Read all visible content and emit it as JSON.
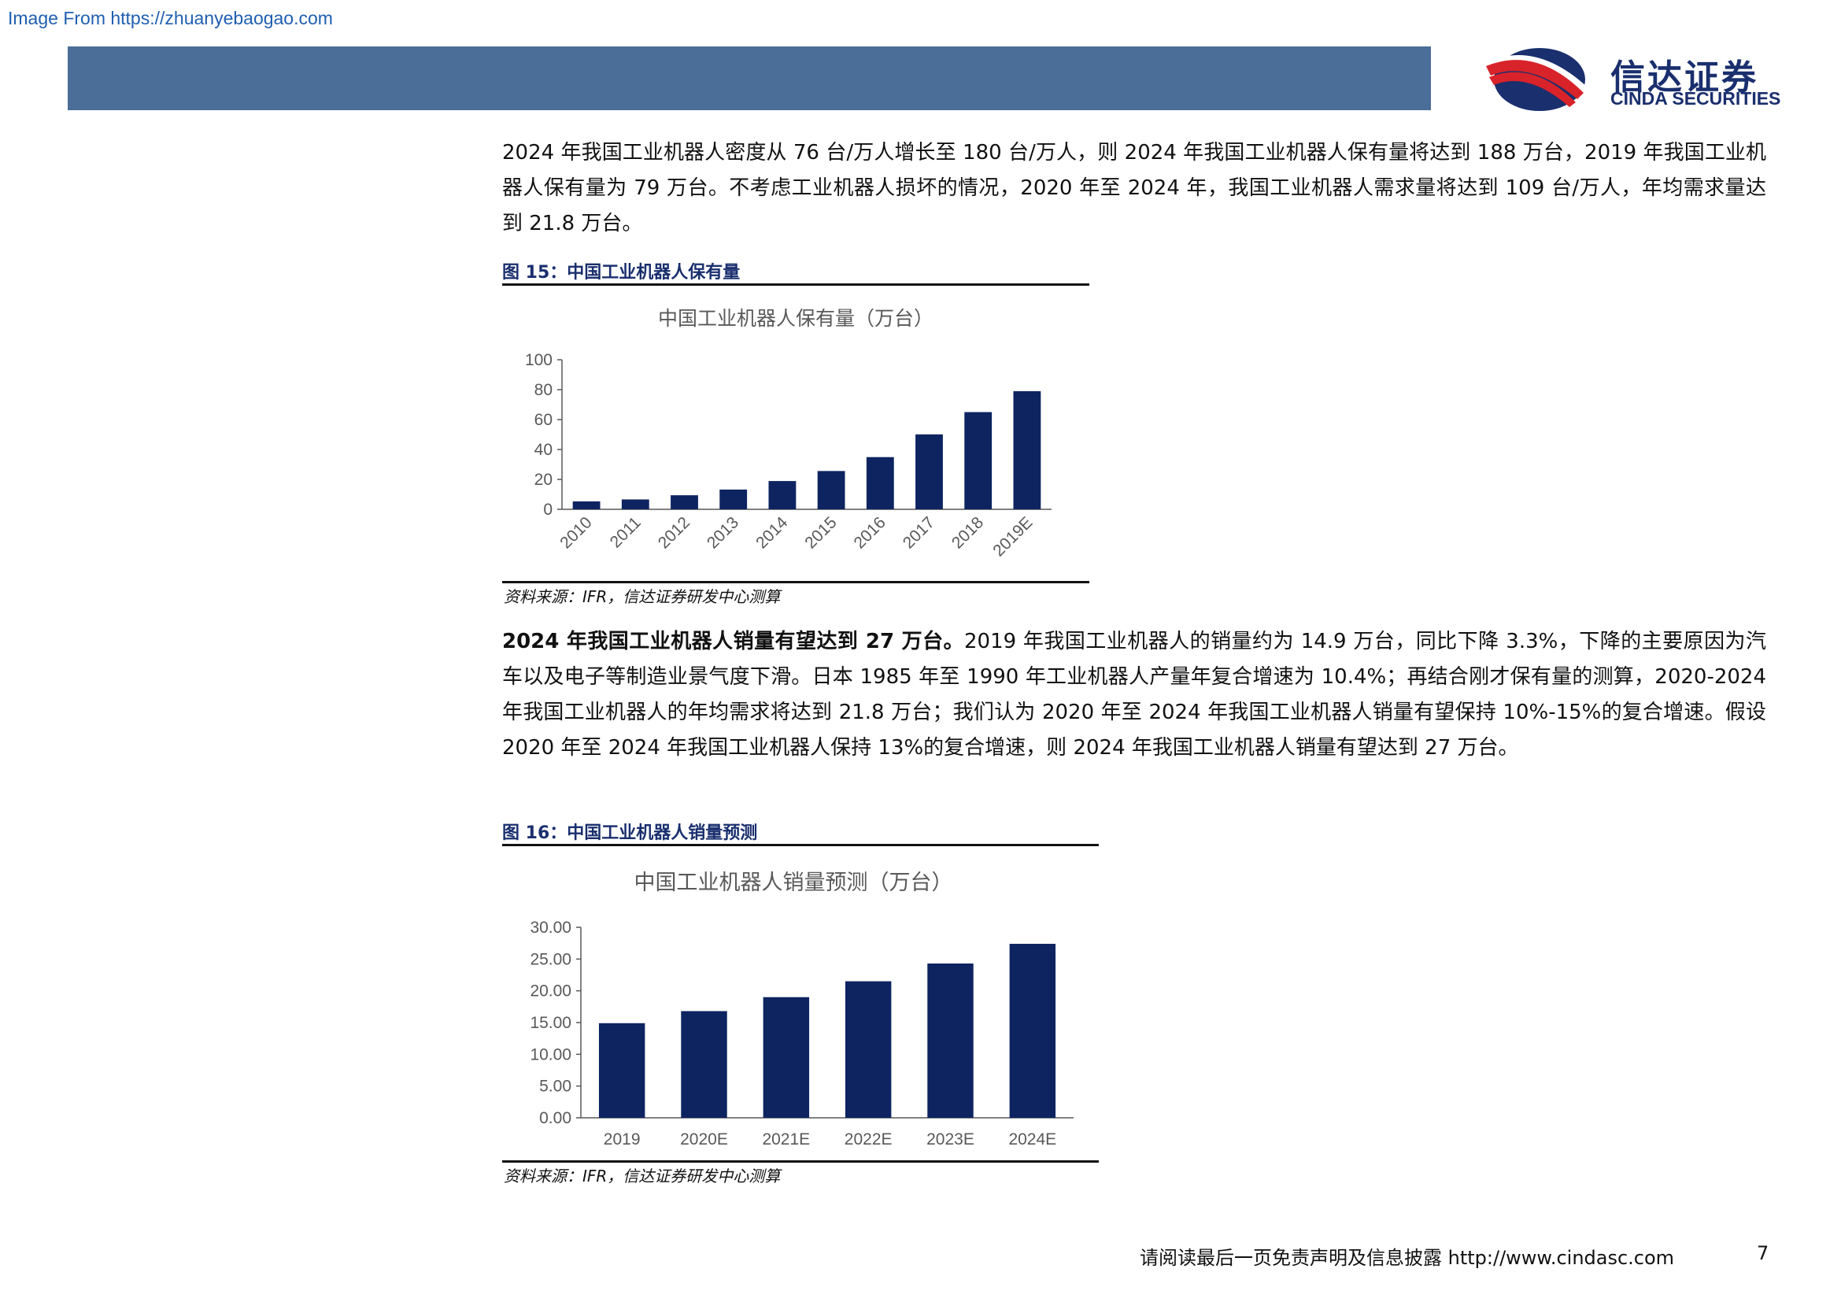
{
  "watermark": "Image From https://zhuanyebaogao.com",
  "logo": {
    "cn": "信达证券",
    "en": "CINDA SECURITIES"
  },
  "intro_paragraph": "2024 年我国工业机器人密度从 76 台/万人增长至 180 台/万人，则 2024 年我国工业机器人保有量将达到 188 万台，2019 年我国工业机器人保有量为 79 万台。不考虑工业机器人损坏的情况，2020 年至 2024 年，我国工业机器人需求量将达到 109 台/万人，年均需求量达到 21.8 万台。",
  "fig15": {
    "title": "图 15：中国工业机器人保有量",
    "source": "资料来源：IFR，信达证券研发中心测算"
  },
  "section2": {
    "bold_lead": "2024 年我国工业机器人销量有望达到 27 万台。",
    "body": "2019 年我国工业机器人的销量约为 14.9 万台，同比下降 3.3%，下降的主要原因为汽车以及电子等制造业景气度下滑。日本 1985 年至 1990 年工业机器人产量年复合增速为 10.4%；再结合刚才保有量的测算，2020-2024 年我国工业机器人的年均需求将达到 21.8 万台；我们认为 2020 年至 2024 年我国工业机器人销量有望保持 10%-15%的复合增速。假设 2020 年至 2024 年我国工业机器人保持 13%的复合增速，则 2024 年我国工业机器人销量有望达到 27 万台。"
  },
  "fig16": {
    "title": "图 16：中国工业机器人销量预测",
    "source": "资料来源：IFR，信达证券研发中心测算"
  },
  "footer": {
    "disclaimer": "请阅读最后一页免责声明及信息披露 http://www.cindasc.com",
    "page": "7"
  },
  "colors": {
    "bar": "#0d2461",
    "header_bar": "#4a6e98",
    "logo_red": "#d8232a",
    "logo_navy": "#1a2f6e"
  },
  "chart_data": [
    {
      "type": "bar",
      "title": "中国工业机器人保有量（万台）",
      "categories": [
        "2010",
        "2011",
        "2012",
        "2013",
        "2014",
        "2015",
        "2016",
        "2017",
        "2018",
        "2019E"
      ],
      "values": [
        5.3,
        6.6,
        9.4,
        13.2,
        18.9,
        25.6,
        34.9,
        50.1,
        65.0,
        79.0
      ],
      "ylim": [
        0,
        100
      ],
      "yticks": [
        "0",
        "20",
        "40",
        "60",
        "80",
        "100"
      ],
      "grid": false,
      "xlabel": "",
      "ylabel": ""
    },
    {
      "type": "bar",
      "title": "中国工业机器人销量预测（万台）",
      "categories": [
        "2019",
        "2020E",
        "2021E",
        "2022E",
        "2023E",
        "2024E"
      ],
      "values": [
        14.9,
        16.8,
        19.0,
        21.5,
        24.3,
        27.4
      ],
      "ylim": [
        0,
        30
      ],
      "yticks": [
        "0.00",
        "5.00",
        "10.00",
        "15.00",
        "20.00",
        "25.00",
        "30.00"
      ],
      "grid": false,
      "xlabel": "",
      "ylabel": ""
    }
  ]
}
